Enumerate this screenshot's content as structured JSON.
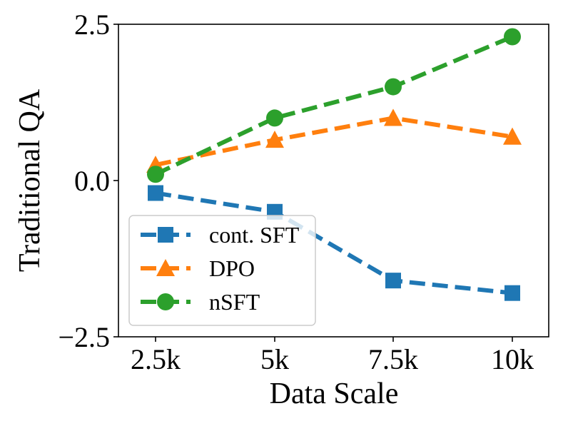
{
  "chart_data": {
    "type": "line",
    "xlabel": "Data Scale",
    "ylabel": "Traditional QA",
    "categories": [
      "2.5k",
      "5k",
      "7.5k",
      "10k"
    ],
    "y_ticks": [
      "−2.5",
      "0.0",
      "2.5"
    ],
    "y_tick_values": [
      -2.5,
      0.0,
      2.5
    ],
    "ylim": [
      -2.5,
      2.5
    ],
    "grid": false,
    "legend_position": "lower-left",
    "series": [
      {
        "name": "cont. SFT",
        "color": "#1f77b4",
        "marker": "square",
        "line_style": "dashed",
        "values": [
          -0.2,
          -0.5,
          -1.6,
          -1.8
        ]
      },
      {
        "name": "DPO",
        "color": "#ff7f0e",
        "marker": "triangle",
        "line_style": "dashed",
        "values": [
          0.25,
          0.65,
          1.0,
          0.7
        ]
      },
      {
        "name": "nSFT",
        "color": "#2ca02c",
        "marker": "circle",
        "line_style": "dashed",
        "values": [
          0.1,
          1.0,
          1.5,
          2.3
        ]
      }
    ]
  }
}
